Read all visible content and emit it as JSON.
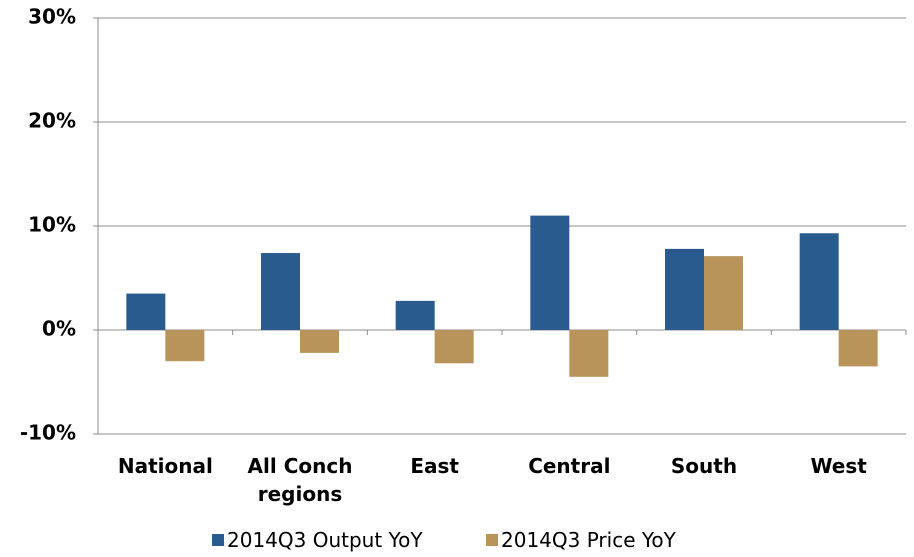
{
  "chart_data": {
    "type": "bar",
    "categories": [
      "National",
      "All Conch regions",
      "East",
      "Central",
      "South",
      "West"
    ],
    "series": [
      {
        "name": "2014Q3 Output YoY",
        "color": "#2a5b8f",
        "values": [
          3.5,
          7.4,
          2.8,
          11.0,
          7.8,
          9.3
        ]
      },
      {
        "name": "2014Q3 Price YoY",
        "color": "#b8945a",
        "values": [
          -3.0,
          -2.2,
          -3.2,
          -4.5,
          7.1,
          -3.5
        ]
      }
    ],
    "ylim": [
      -10,
      30
    ],
    "yticks": [
      {
        "value": -10,
        "label": "-10%"
      },
      {
        "value": 0,
        "label": "0%"
      },
      {
        "value": 10,
        "label": "10%"
      },
      {
        "value": 20,
        "label": "20%"
      },
      {
        "value": 30,
        "label": "30%"
      }
    ],
    "grid": true
  }
}
